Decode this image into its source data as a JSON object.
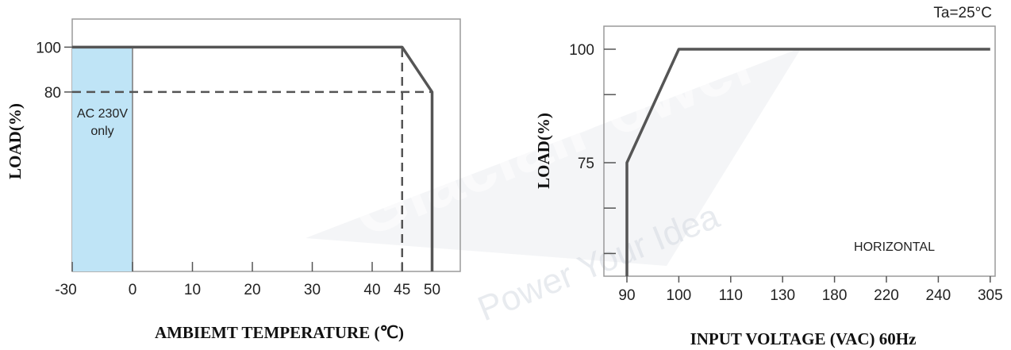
{
  "watermark": {
    "brand": "GlacialPower",
    "tagline": "Power Your Idea",
    "color": "#d6dbe3"
  },
  "chart_data": [
    {
      "type": "line",
      "title": "",
      "xlabel": "AMBIEMT TEMPERATURE (℃)",
      "ylabel": "LOAD(%)",
      "x_ticks": [
        "-30",
        "0",
        "10",
        "20",
        "30",
        "40",
        "45",
        "50"
      ],
      "y_ticks": [
        "100",
        "80"
      ],
      "xlim": [
        -30,
        55
      ],
      "ylim": [
        0,
        110
      ],
      "series": [
        {
          "x": [
            -30,
            45,
            50,
            50
          ],
          "y": [
            100,
            100,
            80,
            0
          ]
        }
      ],
      "reference_lines": [
        {
          "from": [
            -30,
            80
          ],
          "to": [
            50,
            80
          ],
          "style": "dashed"
        },
        {
          "from": [
            45,
            0
          ],
          "to": [
            45,
            100
          ],
          "style": "dashed"
        }
      ],
      "shaded_region": {
        "x": [
          -30,
          0
        ],
        "y": [
          0,
          100
        ],
        "color": "#bfe4f6",
        "label": "AC 230V only"
      },
      "grid": false,
      "line_color": "#555555"
    },
    {
      "type": "line",
      "title": "",
      "xlabel": "INPUT VOLTAGE (VAC) 60Hz",
      "ylabel": "LOAD(%)",
      "x_ticks": [
        "90",
        "100",
        "110",
        "130",
        "180",
        "220",
        "240",
        "305"
      ],
      "y_ticks": [
        "100",
        "75"
      ],
      "x_scale": "categorical",
      "ylim": [
        50,
        105
      ],
      "series": [
        {
          "x": [
            "90",
            "90",
            "100",
            "305"
          ],
          "y": [
            50,
            75,
            100,
            100
          ]
        }
      ],
      "annotations": [
        "Ta=25°C",
        "HORIZONTAL"
      ],
      "grid": false,
      "line_color": "#555555"
    }
  ]
}
